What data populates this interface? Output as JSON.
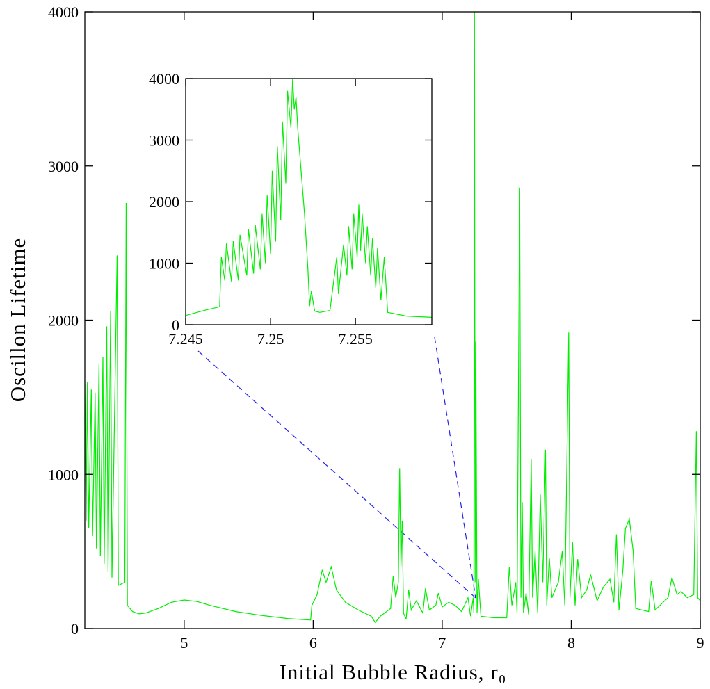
{
  "chart_data": [
    {
      "type": "line",
      "xlabel": "Initial Bubble Radius, r₀",
      "ylabel": "Oscillon Lifetime",
      "color": "#00ee00",
      "xlim": [
        4.23,
        9
      ],
      "ylim": [
        0,
        4000
      ],
      "xticks": [
        5,
        6,
        7,
        8,
        9
      ],
      "yticks": [
        0,
        1000,
        2000,
        3000,
        4000
      ],
      "x": [
        4.23,
        4.24,
        4.25,
        4.26,
        4.28,
        4.29,
        4.31,
        4.32,
        4.34,
        4.35,
        4.37,
        4.38,
        4.4,
        4.41,
        4.43,
        4.44,
        4.48,
        4.49,
        4.54,
        4.55,
        4.56,
        4.6,
        4.65,
        4.7,
        4.8,
        4.9,
        5.0,
        5.1,
        5.2,
        5.4,
        5.6,
        5.8,
        5.98,
        5.99,
        6.03,
        6.07,
        6.1,
        6.14,
        6.18,
        6.25,
        6.35,
        6.45,
        6.48,
        6.52,
        6.6,
        6.62,
        6.64,
        6.66,
        6.67,
        6.68,
        6.69,
        6.7,
        6.72,
        6.74,
        6.76,
        6.8,
        6.85,
        6.87,
        6.9,
        6.95,
        6.97,
        7.0,
        7.05,
        7.1,
        7.15,
        7.2,
        7.22,
        7.24,
        7.245,
        7.25,
        7.255,
        7.26,
        7.27,
        7.28,
        7.3,
        7.4,
        7.5,
        7.52,
        7.54,
        7.57,
        7.58,
        7.6,
        7.61,
        7.62,
        7.63,
        7.65,
        7.67,
        7.69,
        7.7,
        7.72,
        7.74,
        7.76,
        7.78,
        7.8,
        7.81,
        7.83,
        7.85,
        7.9,
        7.93,
        7.95,
        7.98,
        7.99,
        8.01,
        8.03,
        8.05,
        8.08,
        8.12,
        8.15,
        8.2,
        8.25,
        8.3,
        8.33,
        8.35,
        8.37,
        8.4,
        8.42,
        8.45,
        8.48,
        8.5,
        8.55,
        8.6,
        8.62,
        8.65,
        8.7,
        8.75,
        8.78,
        8.82,
        8.85,
        8.9,
        8.95,
        8.97,
        8.98,
        9.0
      ],
      "values": [
        1600,
        700,
        1600,
        650,
        1550,
        600,
        1530,
        520,
        1720,
        470,
        1760,
        420,
        1960,
        370,
        2060,
        330,
        2420,
        280,
        300,
        2760,
        150,
        110,
        95,
        100,
        130,
        170,
        185,
        175,
        150,
        110,
        85,
        65,
        55,
        150,
        220,
        380,
        300,
        400,
        250,
        170,
        120,
        80,
        40,
        80,
        130,
        340,
        200,
        300,
        1040,
        400,
        700,
        100,
        60,
        250,
        120,
        180,
        100,
        260,
        120,
        150,
        230,
        140,
        170,
        150,
        110,
        200,
        80,
        200,
        100,
        4000,
        300,
        1860,
        100,
        320,
        80,
        70,
        70,
        400,
        150,
        300,
        100,
        2860,
        200,
        820,
        100,
        230,
        90,
        1100,
        200,
        500,
        100,
        870,
        300,
        1160,
        150,
        460,
        200,
        300,
        500,
        150,
        1920,
        200,
        560,
        150,
        450,
        200,
        250,
        350,
        180,
        270,
        320,
        170,
        610,
        120,
        380,
        650,
        710,
        500,
        130,
        120,
        110,
        310,
        120,
        160,
        200,
        330,
        220,
        240,
        200,
        220,
        1280,
        200,
        180
      ]
    },
    {
      "type": "line",
      "color": "#00ee00",
      "xlim": [
        7.245,
        7.2595
      ],
      "ylim": [
        0,
        4000
      ],
      "xticks": [
        7.245,
        7.25,
        7.255
      ],
      "yticks": [
        0,
        1000,
        2000,
        3000,
        4000
      ],
      "x": [
        7.245,
        7.2462,
        7.247,
        7.2471,
        7.2473,
        7.2474,
        7.2477,
        7.2478,
        7.2481,
        7.2482,
        7.2486,
        7.2487,
        7.249,
        7.2491,
        7.2494,
        7.2495,
        7.2497,
        7.2498,
        7.25,
        7.2501,
        7.2503,
        7.2504,
        7.2506,
        7.2507,
        7.2509,
        7.251,
        7.2512,
        7.2513,
        7.2514,
        7.2515,
        7.2516,
        7.2518,
        7.252,
        7.2522,
        7.2523,
        7.2524,
        7.2526,
        7.2529,
        7.2535,
        7.2539,
        7.254,
        7.2543,
        7.2545,
        7.2546,
        7.2548,
        7.2549,
        7.2551,
        7.2552,
        7.2553,
        7.2554,
        7.2556,
        7.2557,
        7.2559,
        7.256,
        7.2562,
        7.2563,
        7.2565,
        7.2567,
        7.2569,
        7.258,
        7.2595
      ],
      "values": [
        150,
        240,
        290,
        1100,
        720,
        1320,
        700,
        1360,
        720,
        1460,
        800,
        1550,
        830,
        1620,
        900,
        1800,
        1000,
        2100,
        1150,
        2500,
        1350,
        2900,
        1700,
        3300,
        2300,
        3800,
        3200,
        4000,
        3500,
        3700,
        3200,
        2500,
        1800,
        900,
        300,
        550,
        220,
        200,
        230,
        1100,
        500,
        1300,
        800,
        1600,
        900,
        1800,
        1100,
        1950,
        1200,
        1800,
        1000,
        1600,
        800,
        1400,
        600,
        1250,
        400,
        1100,
        200,
        140,
        120
      ]
    }
  ]
}
